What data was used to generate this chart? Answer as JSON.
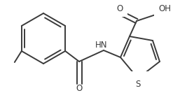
{
  "bg_color": "#ffffff",
  "line_color": "#3a3a3a",
  "line_width": 1.4,
  "font_size": 8.5,
  "figsize": [
    2.77,
    1.43
  ],
  "dpi": 100,
  "xlim": [
    0,
    277
  ],
  "ylim": [
    0,
    143
  ]
}
